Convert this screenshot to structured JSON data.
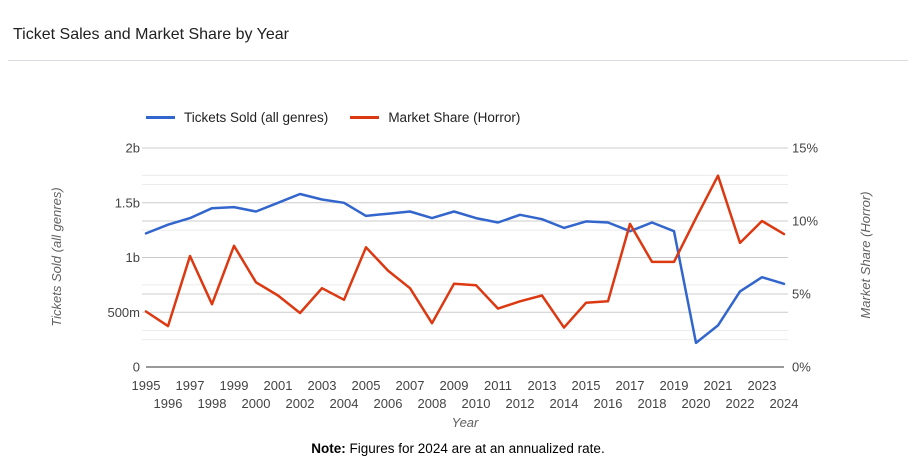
{
  "page": {
    "title": "Ticket Sales and Market Share by Year",
    "note_label": "Note:",
    "note_text": " Figures for 2024 are at an annualized rate."
  },
  "chart_data": {
    "type": "line",
    "title": "Ticket Sales and Market Share by Year",
    "xlabel": "Year",
    "legend_position": "top",
    "grid": "horizontal-major-and-minor",
    "x": [
      1995,
      1996,
      1997,
      1998,
      1999,
      2000,
      2001,
      2002,
      2003,
      2004,
      2005,
      2006,
      2007,
      2008,
      2009,
      2010,
      2011,
      2012,
      2013,
      2014,
      2015,
      2016,
      2017,
      2018,
      2019,
      2020,
      2021,
      2022,
      2023,
      2024
    ],
    "series": [
      {
        "name": "Tickets Sold (all genres)",
        "color": "#3366CC",
        "axis": "left",
        "unit": "billions of tickets",
        "values": [
          1.22,
          1.3,
          1.36,
          1.45,
          1.46,
          1.42,
          1.5,
          1.58,
          1.53,
          1.5,
          1.38,
          1.4,
          1.42,
          1.36,
          1.42,
          1.36,
          1.32,
          1.39,
          1.35,
          1.27,
          1.33,
          1.32,
          1.24,
          1.32,
          1.24,
          0.22,
          0.38,
          0.69,
          0.82,
          0.76
        ]
      },
      {
        "name": "Market Share (Horror)",
        "color": "#DC3912",
        "axis": "right",
        "unit": "percent",
        "values": [
          3.8,
          2.8,
          7.6,
          4.3,
          8.3,
          5.8,
          4.9,
          3.7,
          5.4,
          4.6,
          8.2,
          6.6,
          5.4,
          3.0,
          5.7,
          5.6,
          4.0,
          4.5,
          4.9,
          2.7,
          4.4,
          4.5,
          9.8,
          7.2,
          7.2,
          10.2,
          13.1,
          8.5,
          10.0,
          9.1
        ]
      }
    ],
    "left_axis": {
      "label": "Tickets Sold (all genres)",
      "min": 0,
      "max": 2,
      "major_step": 0.5,
      "minor_step": 0.25,
      "ticks": [
        {
          "value": 0,
          "label": "0"
        },
        {
          "value": 0.5,
          "label": "500m"
        },
        {
          "value": 1,
          "label": "1b"
        },
        {
          "value": 1.5,
          "label": "1.5b"
        },
        {
          "value": 2,
          "label": "2b"
        }
      ]
    },
    "right_axis": {
      "label": "Market Share (Horror)",
      "min": 0,
      "max": 15,
      "major_step": 5,
      "minor_step": 2.5,
      "ticks": [
        {
          "value": 0,
          "label": "0%"
        },
        {
          "value": 5,
          "label": "5%"
        },
        {
          "value": 10,
          "label": "10%"
        },
        {
          "value": 15,
          "label": "15%"
        }
      ]
    },
    "colors": {
      "major_gridline": "#cccccc",
      "minor_gridline": "#ebebeb",
      "baseline": "#333333",
      "tick_label": "#444444",
      "axis_title": "#616161"
    }
  }
}
